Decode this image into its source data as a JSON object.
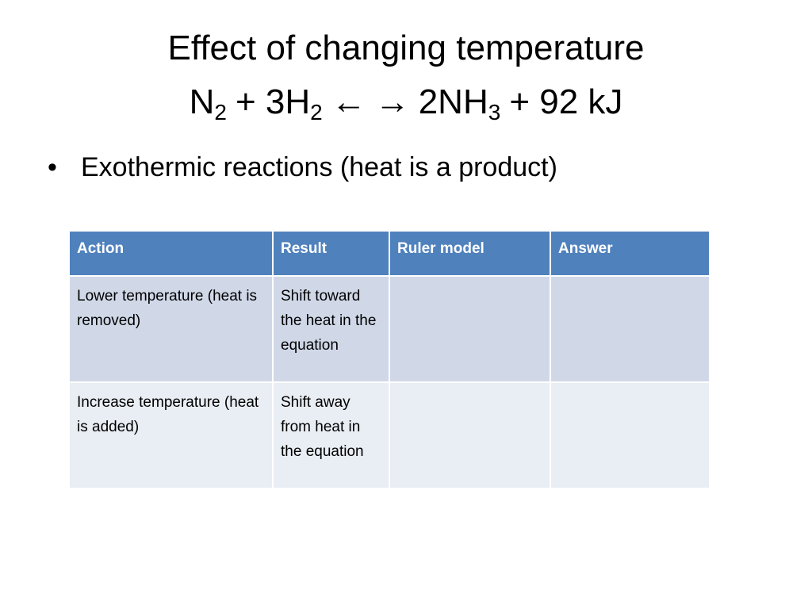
{
  "header": {
    "title": "Effect of changing temperature",
    "equation": [
      "N",
      "2",
      "+ 3H",
      "2",
      "←",
      "→",
      "2NH",
      "3",
      "+ 92 kJ"
    ]
  },
  "bullets": [
    "Exothermic reactions (heat is a product)"
  ],
  "table": {
    "columns": [
      "Action",
      "Result",
      "Ruler model",
      "Answer"
    ],
    "rows": [
      [
        "Lower temperature (heat is removed)",
        "Shift toward the heat in the equation"
      ],
      [
        "Increase temperature (heat is added)",
        "Shift away from heat in the equation"
      ]
    ]
  }
}
